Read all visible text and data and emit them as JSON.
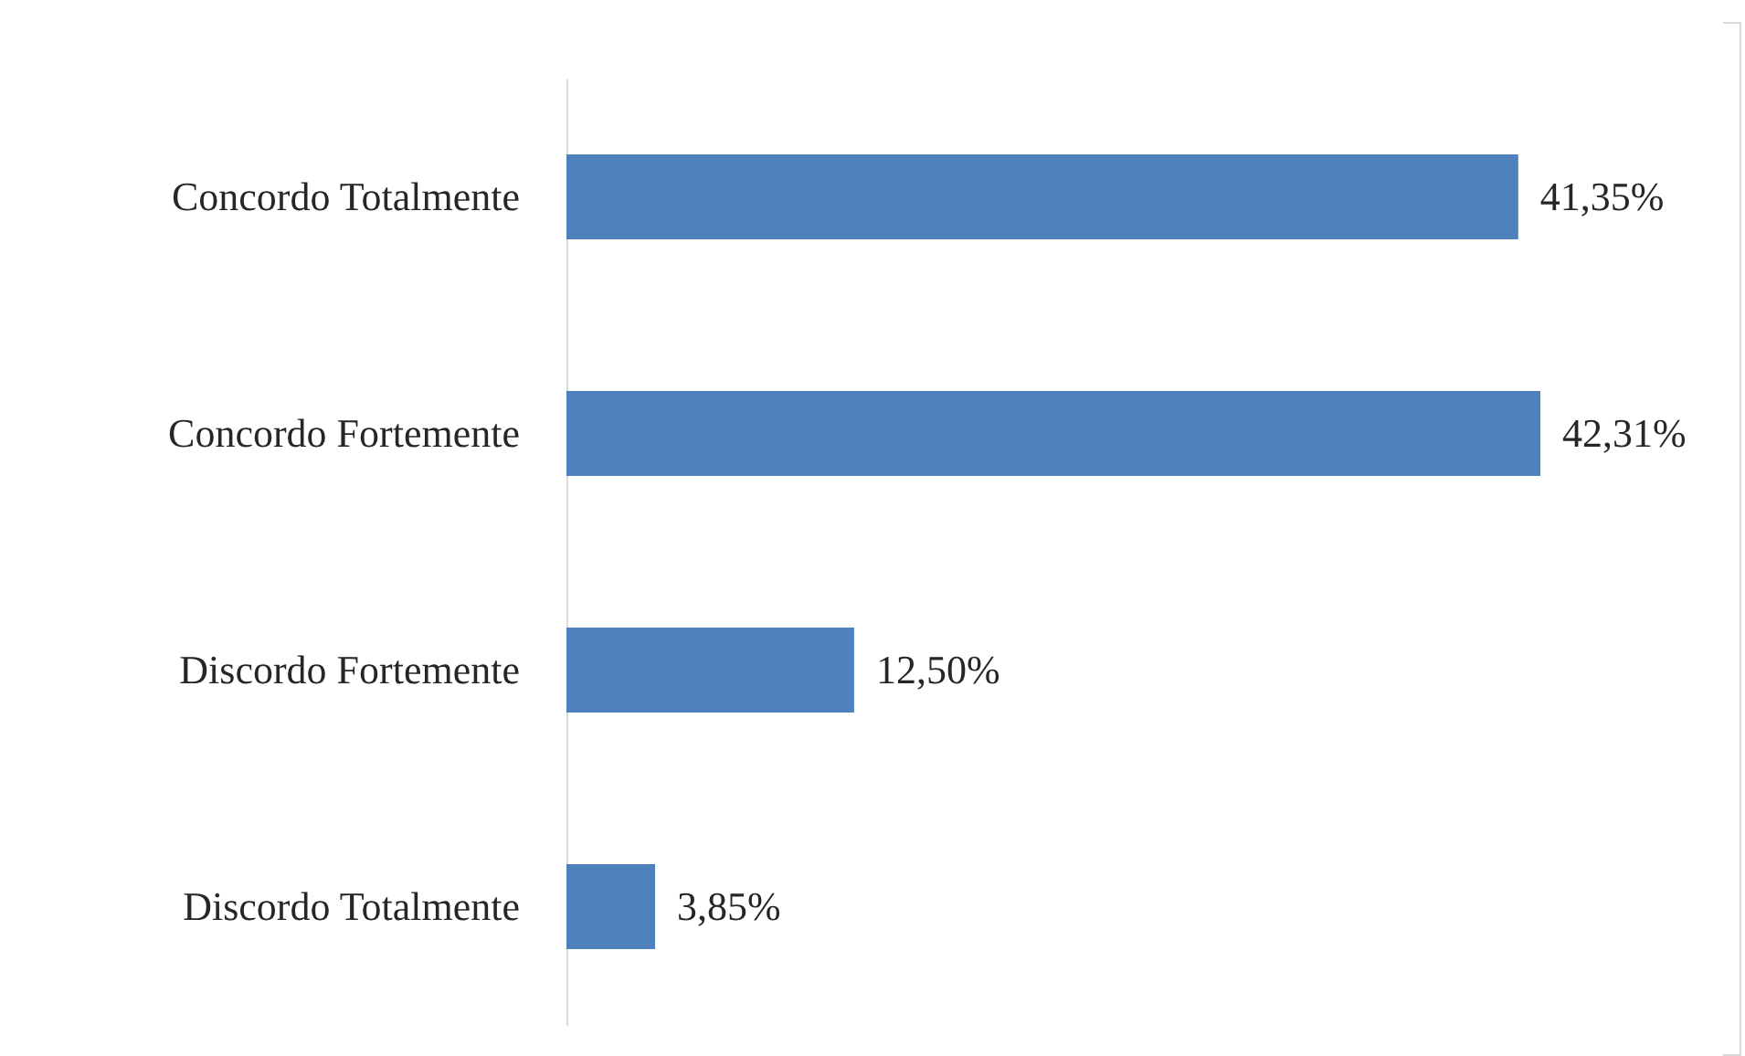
{
  "chart_data": {
    "type": "bar",
    "orientation": "horizontal",
    "categories": [
      "Concordo Totalmente",
      "Concordo Fortemente",
      "Discordo Fortemente",
      "Discordo Totalmente"
    ],
    "values": [
      41.35,
      42.31,
      12.5,
      3.85
    ],
    "value_labels": [
      "41,35%",
      "42,31%",
      "12,50%",
      "3,85%"
    ],
    "color": "#4f81bd"
  }
}
